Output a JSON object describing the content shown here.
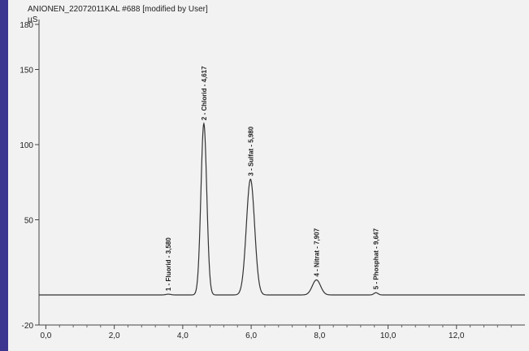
{
  "chart_data": {
    "type": "line",
    "title": "ANIONEN_22072011KAL #688 [modified by User]",
    "ylabel": "µS",
    "xlabel": "",
    "xlim": [
      -0.2,
      14.0
    ],
    "ylim": [
      -20,
      180
    ],
    "xticks": [
      0.0,
      2.0,
      4.0,
      6.0,
      8.0,
      10.0,
      12.0
    ],
    "xtick_labels": [
      "0,0",
      "2,0",
      "4,0",
      "6,0",
      "8,0",
      "10,0",
      "12,0"
    ],
    "yticks": [
      -20,
      50,
      100,
      150,
      180
    ],
    "ytick_labels": [
      "-20",
      "50",
      "100",
      "150",
      "180"
    ],
    "baseline": 0,
    "peaks": [
      {
        "label": "1 - Fluorid - 3,580",
        "x": 3.58,
        "height": 0.5,
        "width": 0.07
      },
      {
        "label": "2 - Chlorid - 4,617",
        "x": 4.617,
        "height": 114,
        "width": 0.085
      },
      {
        "label": "3 - Sulfat - 5,980",
        "x": 5.98,
        "height": 77,
        "width": 0.12
      },
      {
        "label": "4 - Nitrat - 7,907",
        "x": 7.907,
        "height": 10,
        "width": 0.12
      },
      {
        "label": "5 - Phosphat - 9,647",
        "x": 9.647,
        "height": 1.5,
        "width": 0.06
      }
    ]
  }
}
